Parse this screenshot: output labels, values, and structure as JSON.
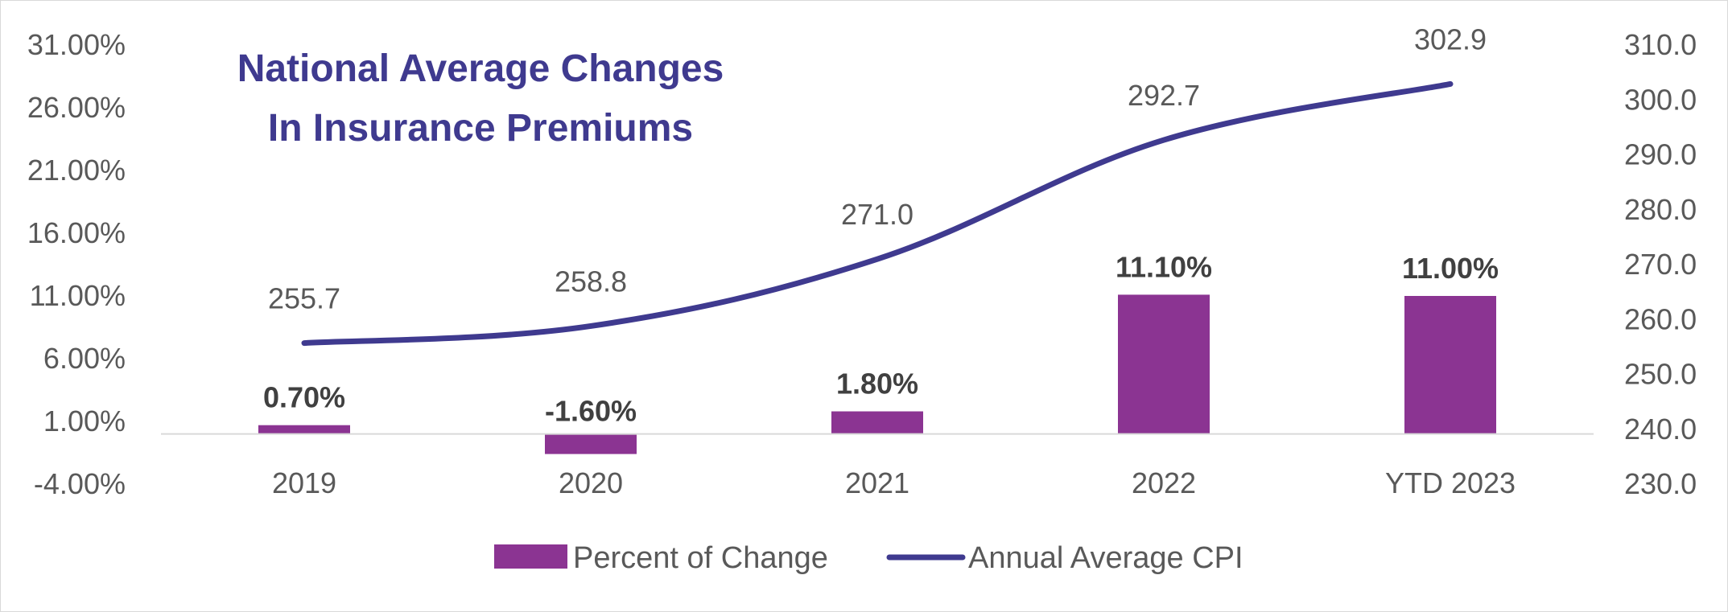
{
  "chart_data": {
    "type": "bar",
    "title_lines": [
      "National Average Changes",
      "In Insurance Premiums"
    ],
    "categories": [
      "2019",
      "2020",
      "2021",
      "2022",
      "YTD 2023"
    ],
    "series": [
      {
        "name": "Percent of Change",
        "type": "bar",
        "axis": "left",
        "values": [
          0.7,
          -1.6,
          1.8,
          11.1,
          11.0
        ],
        "labels": [
          "0.70%",
          "-1.60%",
          "1.80%",
          "11.10%",
          "11.00%"
        ]
      },
      {
        "name": "Annual Average CPI",
        "type": "line",
        "axis": "right",
        "values": [
          255.7,
          258.8,
          271.0,
          292.7,
          302.9
        ],
        "labels": [
          "255.7",
          "258.8",
          "271.0",
          "292.7",
          "302.9"
        ]
      }
    ],
    "y_left": {
      "min": -4,
      "max": 31,
      "ticks": [
        31,
        26,
        21,
        16,
        11,
        6,
        1,
        -4
      ],
      "tick_labels": [
        "31.00%",
        "26.00%",
        "21.00%",
        "16.00%",
        "11.00%",
        "6.00%",
        "1.00%",
        "-4.00%"
      ]
    },
    "y_right": {
      "min": 230,
      "max": 310,
      "ticks": [
        310,
        300,
        290,
        280,
        270,
        260,
        250,
        240,
        230
      ],
      "tick_labels": [
        "310.0",
        "300.0",
        "290.0",
        "280.0",
        "270.0",
        "260.0",
        "250.0",
        "240.0",
        "230.0"
      ]
    },
    "legend_position": "bottom",
    "grid": false,
    "colors": {
      "bar": "#8b3492",
      "line": "#3f3a8f",
      "title": "#3f3a8f",
      "axis_line": "#d9d9d9"
    }
  }
}
